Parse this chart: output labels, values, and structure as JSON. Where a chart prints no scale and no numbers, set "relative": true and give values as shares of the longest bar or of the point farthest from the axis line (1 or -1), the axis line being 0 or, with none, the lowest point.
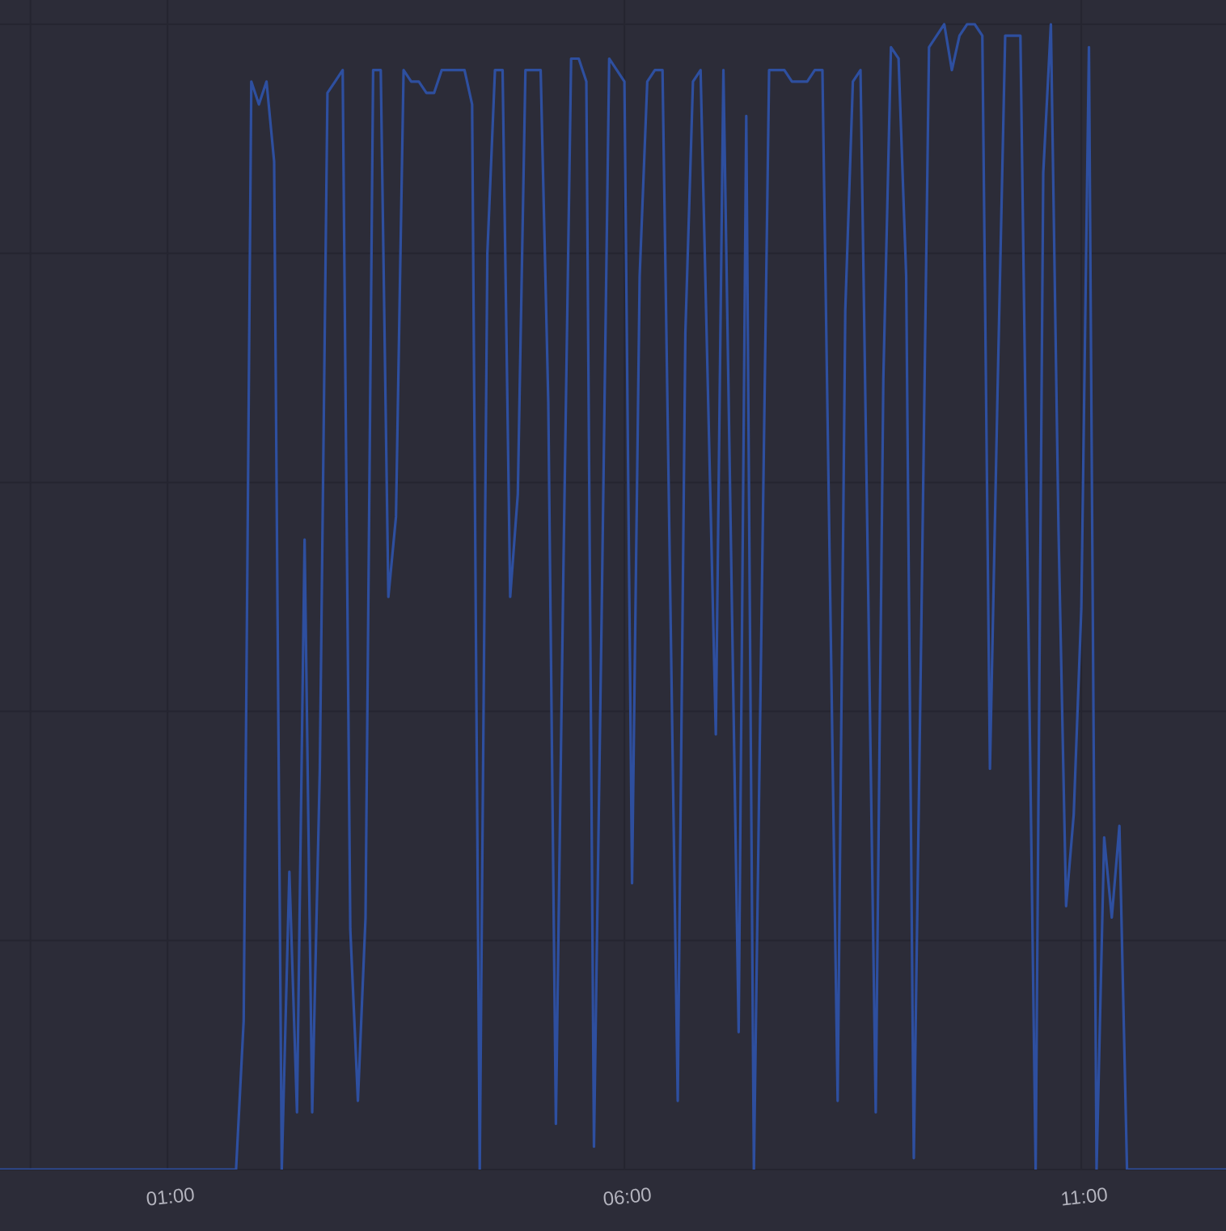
{
  "chart_data": {
    "type": "line",
    "relative": true,
    "color": "#2e4f9f",
    "grid": true,
    "xlim": [
      -0.8333,
      12.5833
    ],
    "xticks": [
      {
        "value": -0.5,
        "label": null
      },
      {
        "value": 1,
        "label": "01:00"
      },
      {
        "value": 6,
        "label": "06:00"
      },
      {
        "value": 11,
        "label": "11:00"
      }
    ],
    "x": [
      -0.8333,
      1.75,
      1.8333,
      1.9167,
      2,
      2.0833,
      2.1667,
      2.25,
      2.3333,
      2.4167,
      2.5,
      2.5833,
      2.6667,
      2.75,
      2.8333,
      2.9167,
      3,
      3.0833,
      3.1667,
      3.25,
      3.3333,
      3.4167,
      3.5,
      3.5833,
      3.6667,
      3.75,
      3.8333,
      3.9167,
      4,
      4.0833,
      4.1667,
      4.25,
      4.3333,
      4.4167,
      4.5,
      4.5833,
      4.6667,
      4.75,
      4.8333,
      4.9167,
      5,
      5.0833,
      5.1667,
      5.25,
      5.3333,
      5.4167,
      5.5,
      5.5833,
      5.6667,
      5.75,
      5.8333,
      5.9167,
      6,
      6.0833,
      6.1667,
      6.25,
      6.3333,
      6.4167,
      6.5,
      6.5833,
      6.6667,
      6.75,
      6.8333,
      6.9167,
      7,
      7.0833,
      7.1667,
      7.25,
      7.3333,
      7.4167,
      7.5,
      7.5833,
      7.6667,
      7.75,
      7.8333,
      7.9167,
      8,
      8.0833,
      8.1667,
      8.25,
      8.3333,
      8.4167,
      8.5,
      8.5833,
      8.6667,
      8.75,
      8.8333,
      8.9167,
      9,
      9.0833,
      9.1667,
      9.25,
      9.3333,
      9.4167,
      9.5,
      9.5833,
      9.6667,
      9.75,
      9.8333,
      9.9167,
      10,
      10.0833,
      10.1667,
      10.25,
      10.3333,
      10.4167,
      10.5,
      10.5833,
      10.6667,
      10.75,
      10.8333,
      10.9167,
      11,
      11.0833,
      11.1667,
      11.25,
      11.3333,
      11.4167,
      11.5,
      12.5833
    ],
    "values": [
      0,
      0,
      0.13,
      0.95,
      0.93,
      0.95,
      0.88,
      0,
      0.26,
      0.05,
      0.55,
      0.05,
      0.35,
      0.94,
      0.95,
      0.96,
      0.21,
      0.06,
      0.22,
      0.96,
      0.96,
      0.5,
      0.57,
      0.96,
      0.95,
      0.95,
      0.94,
      0.94,
      0.96,
      0.96,
      0.96,
      0.96,
      0.93,
      0,
      0.8,
      0.96,
      0.96,
      0.5,
      0.59,
      0.96,
      0.96,
      0.96,
      0.67,
      0.04,
      0.53,
      0.97,
      0.97,
      0.95,
      0.02,
      0.48,
      0.97,
      0.96,
      0.95,
      0.25,
      0.78,
      0.95,
      0.96,
      0.96,
      0.51,
      0.06,
      0.73,
      0.95,
      0.96,
      0.67,
      0.38,
      0.96,
      0.54,
      0.12,
      0.92,
      0,
      0.48,
      0.96,
      0.96,
      0.96,
      0.95,
      0.95,
      0.95,
      0.96,
      0.96,
      0.51,
      0.06,
      0.75,
      0.95,
      0.96,
      0.51,
      0.05,
      0.69,
      0.98,
      0.97,
      0.78,
      0.01,
      0.48,
      0.98,
      0.99,
      1,
      0.96,
      0.99,
      1,
      1,
      0.99,
      0.35,
      0.68,
      0.99,
      0.99,
      0.99,
      0.5,
      0,
      0.87,
      1,
      0.56,
      0.23,
      0.31,
      0.49,
      0.98,
      0,
      0.29,
      0.22,
      0.3,
      0,
      0
    ]
  }
}
